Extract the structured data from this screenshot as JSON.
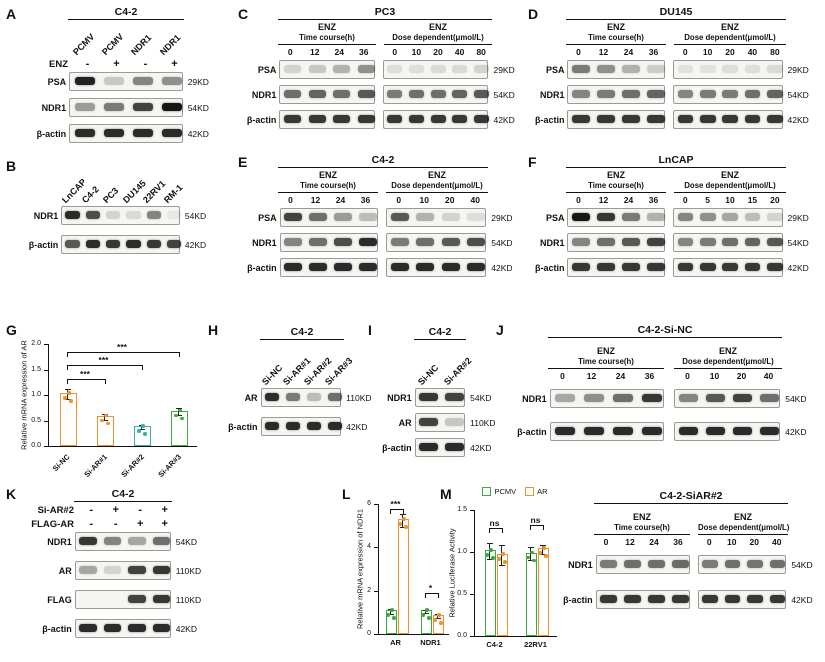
{
  "panel_letters": [
    "A",
    "B",
    "C",
    "D",
    "E",
    "F",
    "G",
    "H",
    "I",
    "J",
    "K",
    "L",
    "M"
  ],
  "blots": {
    "A": {
      "title": "C4-2",
      "lane_labels": [
        "PCMV",
        "PCMV",
        "NDR1",
        "NDR1"
      ],
      "condition_rows": [
        {
          "name": "ENZ",
          "values": [
            "-",
            "+",
            "-",
            "+"
          ]
        }
      ],
      "rows": [
        {
          "name": "PSA",
          "kd": "29KD",
          "bands": [
            [
              0.95,
              0.2,
              0.5,
              0.45
            ]
          ]
        },
        {
          "name": "NDR1",
          "kd": "54KD",
          "bands": [
            [
              0.4,
              0.55,
              0.8,
              1.0
            ]
          ]
        },
        {
          "name": "β-actin",
          "kd": "42KD",
          "bands": [
            [
              0.9,
              0.9,
              0.9,
              0.9
            ]
          ]
        }
      ]
    },
    "B": {
      "lane_labels": [
        "LnCAP",
        "C4-2",
        "PC3",
        "DU145",
        "22RV1",
        "RM-1"
      ],
      "rows": [
        {
          "name": "NDR1",
          "kd": "54KD",
          "bands": [
            [
              0.9,
              0.75,
              0.15,
              0.12,
              0.5,
              0.06
            ]
          ]
        },
        {
          "name": "β-actin",
          "kd": "42KD",
          "bands": [
            [
              0.7,
              0.9,
              0.85,
              0.9,
              0.85,
              0.8
            ]
          ]
        }
      ]
    },
    "C": {
      "title": "PC3",
      "groups": [
        {
          "header1": "ENZ",
          "header2": "Time course(h)",
          "lanes": [
            "0",
            "12",
            "24",
            "36"
          ]
        },
        {
          "header1": "ENZ",
          "header2": "Dose dependent(μmol/L)",
          "lanes": [
            "0",
            "10",
            "20",
            "40",
            "80"
          ]
        }
      ],
      "rows": [
        {
          "name": "PSA",
          "kd": "29KD",
          "bands": [
            [
              0.15,
              0.2,
              0.3,
              0.45
            ],
            [
              0.1,
              0.1,
              0.12,
              0.12,
              0.15
            ]
          ]
        },
        {
          "name": "NDR1",
          "kd": "54KD",
          "bands": [
            [
              0.6,
              0.65,
              0.6,
              0.7
            ],
            [
              0.55,
              0.6,
              0.6,
              0.65,
              0.7
            ]
          ]
        },
        {
          "name": "β-actin",
          "kd": "42KD",
          "bands": [
            [
              0.85,
              0.85,
              0.85,
              0.85
            ],
            [
              0.85,
              0.85,
              0.85,
              0.85,
              0.85
            ]
          ]
        }
      ]
    },
    "D": {
      "title": "DU145",
      "groups": [
        {
          "header1": "ENZ",
          "header2": "Time course(h)",
          "lanes": [
            "0",
            "12",
            "24",
            "36"
          ]
        },
        {
          "header1": "ENZ",
          "header2": "Dose dependent(μmol/L)",
          "lanes": [
            "0",
            "10",
            "20",
            "40",
            "80"
          ]
        }
      ],
      "rows": [
        {
          "name": "PSA",
          "kd": "29KD",
          "bands": [
            [
              0.55,
              0.45,
              0.3,
              0.18
            ],
            [
              0.08,
              0.08,
              0.1,
              0.1,
              0.12
            ]
          ]
        },
        {
          "name": "NDR1",
          "kd": "54KD",
          "bands": [
            [
              0.5,
              0.55,
              0.6,
              0.65
            ],
            [
              0.5,
              0.55,
              0.55,
              0.6,
              0.65
            ]
          ]
        },
        {
          "name": "β-actin",
          "kd": "42KD",
          "bands": [
            [
              0.85,
              0.85,
              0.85,
              0.85
            ],
            [
              0.85,
              0.85,
              0.85,
              0.85,
              0.85
            ]
          ]
        }
      ]
    },
    "E": {
      "title": "C4-2",
      "groups": [
        {
          "header1": "ENZ",
          "header2": "Time course(h)",
          "lanes": [
            "0",
            "12",
            "24",
            "36"
          ]
        },
        {
          "header1": "ENZ",
          "header2": "Dose dependent(μmol/L)",
          "lanes": [
            "0",
            "10",
            "20",
            "40"
          ]
        }
      ],
      "rows": [
        {
          "name": "PSA",
          "kd": "29KD",
          "bands": [
            [
              0.8,
              0.6,
              0.4,
              0.25
            ],
            [
              0.7,
              0.3,
              0.15,
              0.1
            ]
          ]
        },
        {
          "name": "NDR1",
          "kd": "54KD",
          "bands": [
            [
              0.5,
              0.6,
              0.75,
              0.9
            ],
            [
              0.55,
              0.6,
              0.7,
              0.75
            ]
          ]
        },
        {
          "name": "β-actin",
          "kd": "42KD",
          "bands": [
            [
              0.9,
              0.9,
              0.9,
              0.9
            ],
            [
              0.9,
              0.9,
              0.9,
              0.9
            ]
          ]
        }
      ]
    },
    "F": {
      "title": "LnCAP",
      "groups": [
        {
          "header1": "ENZ",
          "header2": "Time course(h)",
          "lanes": [
            "0",
            "12",
            "24",
            "36"
          ]
        },
        {
          "header1": "ENZ",
          "header2": "Dose dependent(μmol/L)",
          "lanes": [
            "0",
            "5",
            "10",
            "15",
            "20"
          ]
        }
      ],
      "rows": [
        {
          "name": "PSA",
          "kd": "29KD",
          "bands": [
            [
              1.0,
              0.85,
              0.55,
              0.3
            ],
            [
              0.5,
              0.45,
              0.35,
              0.25,
              0.15
            ]
          ]
        },
        {
          "name": "NDR1",
          "kd": "54KD",
          "bands": [
            [
              0.5,
              0.6,
              0.7,
              0.8
            ],
            [
              0.5,
              0.55,
              0.6,
              0.65,
              0.7
            ]
          ]
        },
        {
          "name": "β-actin",
          "kd": "42KD",
          "bands": [
            [
              0.85,
              0.85,
              0.85,
              0.85
            ],
            [
              0.85,
              0.85,
              0.85,
              0.85,
              0.85
            ]
          ]
        }
      ]
    },
    "H": {
      "title": "C4-2",
      "lane_labels": [
        "Si-NC",
        "Si-AR#1",
        "Si-AR#2",
        "Si-AR#3"
      ],
      "rows": [
        {
          "name": "AR",
          "kd": "110KD",
          "bands": [
            [
              0.9,
              0.55,
              0.25,
              0.6
            ]
          ]
        },
        {
          "name": "β-actin",
          "kd": "42KD",
          "bands": [
            [
              0.9,
              0.9,
              0.9,
              0.9
            ]
          ]
        }
      ]
    },
    "I": {
      "title": "C4-2",
      "lane_labels": [
        "Si-NC",
        "Si-AR#2"
      ],
      "rows": [
        {
          "name": "NDR1",
          "kd": "54KD",
          "bands": [
            [
              0.85,
              0.8
            ]
          ]
        },
        {
          "name": "AR",
          "kd": "110KD",
          "bands": [
            [
              0.8,
              0.2
            ]
          ]
        },
        {
          "name": "β-actin",
          "kd": "42KD",
          "bands": [
            [
              0.9,
              0.9
            ]
          ]
        }
      ]
    },
    "J": {
      "title": "C4-2-Si-NC",
      "groups": [
        {
          "header1": "ENZ",
          "header2": "Time course(h)",
          "lanes": [
            "0",
            "12",
            "24",
            "36"
          ]
        },
        {
          "header1": "ENZ",
          "header2": "Dose dependent(μmol/L)",
          "lanes": [
            "0",
            "10",
            "20",
            "40"
          ]
        }
      ],
      "rows": [
        {
          "name": "NDR1",
          "kd": "54KD",
          "bands": [
            [
              0.35,
              0.45,
              0.6,
              0.85
            ],
            [
              0.5,
              0.7,
              0.8,
              0.6
            ]
          ]
        },
        {
          "name": "β-actin",
          "kd": "42KD",
          "bands": [
            [
              0.9,
              0.9,
              0.9,
              0.9
            ],
            [
              0.9,
              0.9,
              0.9,
              0.9
            ]
          ]
        }
      ]
    },
    "K": {
      "title": "C4-2",
      "condition_rows": [
        {
          "name": "Si-AR#2",
          "values": [
            "-",
            "+",
            "-",
            "+"
          ]
        },
        {
          "name": "FLAG-AR",
          "values": [
            "-",
            "-",
            "+",
            "+"
          ]
        }
      ],
      "rows": [
        {
          "name": "NDR1",
          "kd": "54KD",
          "bands": [
            [
              0.85,
              0.5,
              0.35,
              0.6
            ]
          ]
        },
        {
          "name": "AR",
          "kd": "110KD",
          "bands": [
            [
              0.35,
              0.15,
              0.8,
              0.85
            ]
          ]
        },
        {
          "name": "FLAG",
          "kd": "110KD",
          "bands": [
            [
              0,
              0,
              0.8,
              0.85
            ]
          ]
        },
        {
          "name": "β-actin",
          "kd": "42KD",
          "bands": [
            [
              0.9,
              0.9,
              0.9,
              0.9
            ]
          ]
        }
      ]
    },
    "SIAR2": {
      "title": "C4-2-SiAR#2",
      "groups": [
        {
          "header1": "ENZ",
          "header2": "Time course(h)",
          "lanes": [
            "0",
            "12",
            "24",
            "36"
          ]
        },
        {
          "header1": "ENZ",
          "header2": "Dose dependent(μmol/L)",
          "lanes": [
            "0",
            "10",
            "20",
            "40"
          ]
        }
      ],
      "rows": [
        {
          "name": "NDR1",
          "kd": "54KD",
          "bands": [
            [
              0.55,
              0.6,
              0.6,
              0.62
            ],
            [
              0.55,
              0.6,
              0.58,
              0.6
            ]
          ]
        },
        {
          "name": "β-actin",
          "kd": "42KD",
          "bands": [
            [
              0.85,
              0.85,
              0.85,
              0.85
            ],
            [
              0.85,
              0.85,
              0.85,
              0.85
            ]
          ]
        }
      ]
    }
  },
  "chart_data": [
    {
      "id": "G",
      "type": "bar",
      "title": "",
      "xlabel": "",
      "ylabel": "Relative mRNA expression of AR",
      "ylim": [
        0,
        2.0
      ],
      "yticks": [
        0,
        0.5,
        1.0,
        1.5,
        2.0
      ],
      "ytick_labels": [
        "0.0",
        "0.5",
        "1.0",
        "1.5",
        "2.0"
      ],
      "grid": false,
      "categories": [
        "Si-NC",
        "Si-AR#1",
        "Si-AR#2",
        "Si-AR#3"
      ],
      "values": [
        1.0,
        0.55,
        0.35,
        0.65
      ],
      "errors": [
        0.1,
        0.05,
        0.04,
        0.07
      ],
      "colors": [
        "#F0912D",
        "#F0912D",
        "#3AAFA9",
        "#3FA93F"
      ],
      "significance": [
        {
          "from": 0,
          "to": 1,
          "y": 1.32,
          "label": "***"
        },
        {
          "from": 0,
          "to": 2,
          "y": 1.58,
          "label": "***"
        },
        {
          "from": 0,
          "to": 3,
          "y": 1.84,
          "label": "***"
        }
      ]
    },
    {
      "id": "L",
      "type": "bar",
      "title": "",
      "xlabel": "",
      "ylabel": "Relative mRNA expression of NDR1",
      "ylim": [
        0,
        6
      ],
      "yticks": [
        0,
        2,
        4,
        6
      ],
      "ytick_labels": [
        "0",
        "2",
        "4",
        "6"
      ],
      "grid": false,
      "categories": [
        "AR",
        "NDR1"
      ],
      "series": [
        {
          "name": "PCMV",
          "color": "#3FA93F",
          "values": [
            1.0,
            1.0
          ],
          "errors": [
            0.1,
            0.08
          ]
        },
        {
          "name": "AR",
          "color": "#F0912D",
          "values": [
            5.2,
            0.78
          ],
          "errors": [
            0.3,
            0.1
          ]
        }
      ],
      "significance": [
        {
          "group": 0,
          "y": 5.75,
          "label": "***"
        },
        {
          "group": 1,
          "y": 1.9,
          "label": "*"
        }
      ]
    },
    {
      "id": "M",
      "type": "bar",
      "title": "",
      "xlabel": "",
      "ylabel": "Relative Luciferase Activity",
      "ylim": [
        0,
        1.5
      ],
      "yticks": [
        0,
        0.5,
        1.0,
        1.5
      ],
      "ytick_labels": [
        "0.0",
        "0.5",
        "1.0",
        "1.5"
      ],
      "grid": false,
      "legend_position": "top",
      "legend": [
        {
          "label": "PCMV",
          "color": "#3FA93F"
        },
        {
          "label": "AR",
          "color": "#F0912D"
        }
      ],
      "categories": [
        "C4-2",
        "22RV1"
      ],
      "series": [
        {
          "name": "PCMV",
          "color": "#3FA93F",
          "values": [
            1.0,
            0.97
          ],
          "errors": [
            0.1,
            0.08
          ]
        },
        {
          "name": "AR",
          "color": "#F0912D",
          "values": [
            0.95,
            1.02
          ],
          "errors": [
            0.12,
            0.05
          ]
        }
      ],
      "significance": [
        {
          "group": 0,
          "y": 1.28,
          "label": "ns"
        },
        {
          "group": 1,
          "y": 1.32,
          "label": "ns"
        }
      ]
    }
  ]
}
